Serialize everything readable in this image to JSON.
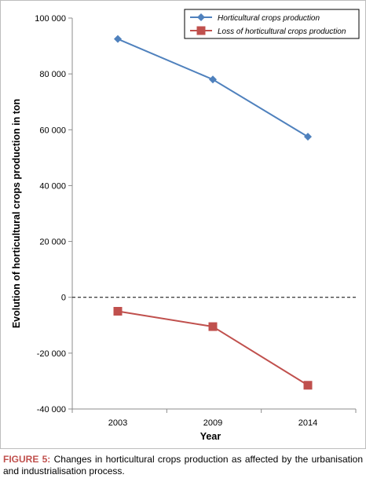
{
  "chart_data": {
    "type": "line",
    "categories": [
      "2003",
      "2009",
      "2014"
    ],
    "series": [
      {
        "name": "Horticultural crops production",
        "values": [
          92500,
          78000,
          57500
        ],
        "color": "#4f81bd",
        "marker": "diamond"
      },
      {
        "name": "Loss of horticultural crops production",
        "values": [
          -5000,
          -10500,
          -31500
        ],
        "color": "#c0504d",
        "marker": "square"
      }
    ],
    "xlabel": "Year",
    "ylabel": "Evolution of horticultural crops production in ton",
    "ylim": [
      -40000,
      100000
    ],
    "yticks": [
      100000,
      80000,
      60000,
      40000,
      20000,
      0,
      -20000,
      -40000
    ],
    "ytick_labels": [
      "100 000",
      "80 000",
      "60 000",
      "40 000",
      "20 000",
      "0",
      "-20 000",
      "-40 000"
    ],
    "zero_line": "dashed",
    "grid": false,
    "legend": "top-right"
  },
  "caption": {
    "label": "FIGURE 5:",
    "text": " Changes in horticultural crops production as affected by the urbanisation and industrialisation process."
  }
}
